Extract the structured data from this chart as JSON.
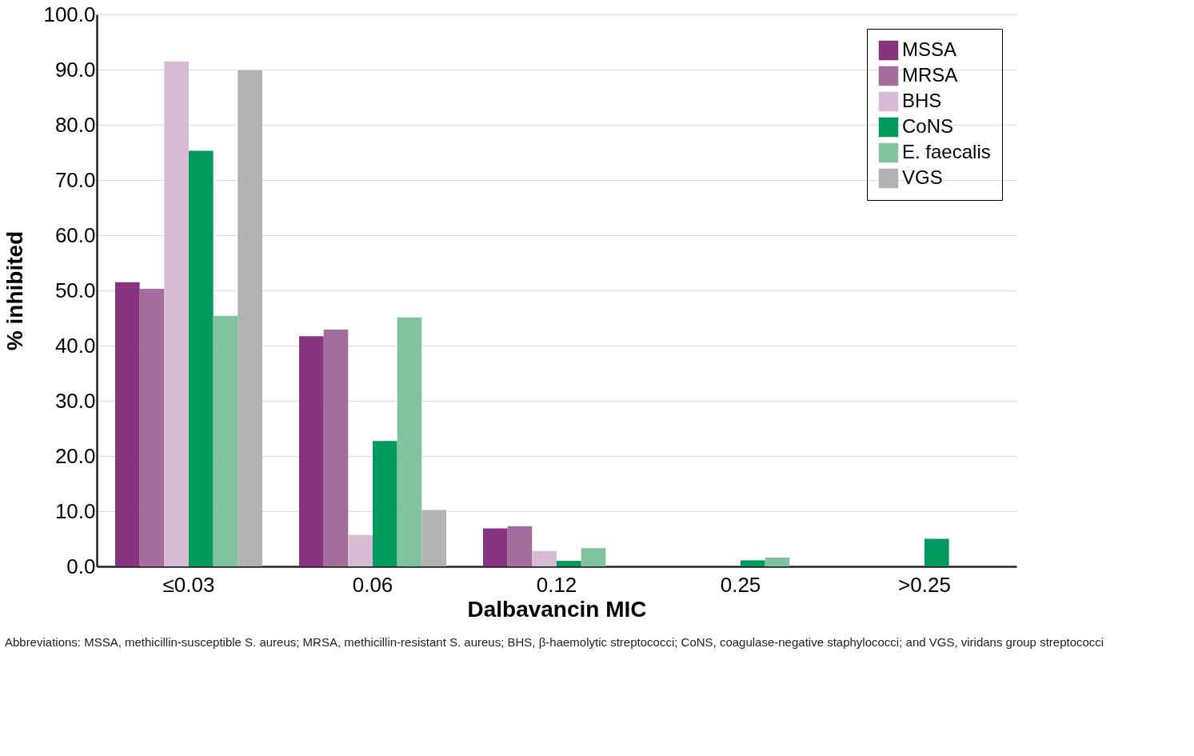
{
  "chart_data": {
    "type": "bar",
    "xlabel": "Dalbavancin MIC",
    "ylabel": "% inhibited",
    "categories": [
      "≤0.03",
      "0.06",
      "0.12",
      "0.25",
      ">0.25"
    ],
    "series": [
      {
        "name": "MSSA",
        "color": "#87357f",
        "values": [
          51.5,
          41.7,
          6.9,
          0,
          0
        ]
      },
      {
        "name": "MRSA",
        "color": "#a56d9e",
        "values": [
          50.3,
          42.9,
          7.3,
          0,
          0
        ]
      },
      {
        "name": "BHS",
        "color": "#d5bbd3",
        "values": [
          91.5,
          5.7,
          2.8,
          0,
          0
        ]
      },
      {
        "name": "CoNS",
        "color": "#009a5e",
        "values": [
          75.3,
          22.7,
          1.0,
          1.1,
          5.0
        ]
      },
      {
        "name": "E. faecalis",
        "color": "#80c39e",
        "values": [
          45.4,
          45.1,
          3.3,
          1.6,
          0
        ]
      },
      {
        "name": "VGS",
        "color": "#b2b2b2",
        "values": [
          89.9,
          10.2,
          0,
          0,
          0
        ]
      }
    ],
    "ylim": [
      0,
      100
    ],
    "yticks": [
      {
        "value": 0,
        "label": "0.0"
      },
      {
        "value": 10,
        "label": "10.0"
      },
      {
        "value": 20,
        "label": "20.0"
      },
      {
        "value": 30,
        "label": "30.0"
      },
      {
        "value": 40,
        "label": "40.0"
      },
      {
        "value": 50,
        "label": "50.0"
      },
      {
        "value": 60,
        "label": "60.0"
      },
      {
        "value": 70,
        "label": "70.0"
      },
      {
        "value": 80,
        "label": "80.0"
      },
      {
        "value": 90,
        "label": "90.0"
      },
      {
        "value": 100,
        "label": "100.0"
      }
    ],
    "grid": "y",
    "legend": "top right",
    "annotations": [
      "Abbreviations: MSSA, methicillin-susceptible S. aureus; MRSA, methicillin-resistant S. aureus; BHS, β-haemolytic streptococci; CoNS, coagulase-negative staphylococci; and VGS, viridans group streptococci"
    ]
  }
}
